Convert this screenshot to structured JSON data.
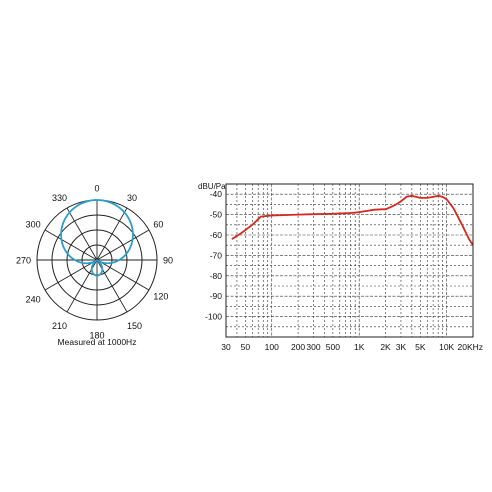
{
  "chart_data": [
    {
      "type": "polar",
      "caption": "Measured at 1000Hz",
      "angle_labels": [
        {
          "angle": 0,
          "label": "0"
        },
        {
          "angle": 30,
          "label": "30"
        },
        {
          "angle": 60,
          "label": "60"
        },
        {
          "angle": 90,
          "label": "90"
        },
        {
          "angle": 120,
          "label": "120"
        },
        {
          "angle": 150,
          "label": "150"
        },
        {
          "angle": 180,
          "label": "180"
        },
        {
          "angle": 210,
          "label": "210"
        },
        {
          "angle": 240,
          "label": "240"
        },
        {
          "angle": 270,
          "label": "270"
        },
        {
          "angle": 300,
          "label": "300"
        },
        {
          "angle": 330,
          "label": "330"
        }
      ],
      "rings": 4,
      "pattern": "supercardioid",
      "pattern_model": {
        "a": 0.37,
        "b": 0.63
      },
      "series_color": "#2a9fcc",
      "grid_color": "#222222"
    },
    {
      "type": "line",
      "ylabel": "dBU/Pa",
      "x_scale": "log",
      "xlim": [
        30,
        20000
      ],
      "ylim": [
        -110,
        -35
      ],
      "grid": true,
      "x_tick_labels": [
        {
          "value": 30,
          "label": "30"
        },
        {
          "value": 50,
          "label": "50"
        },
        {
          "value": 100,
          "label": "100"
        },
        {
          "value": 200,
          "label": "200"
        },
        {
          "value": 300,
          "label": "300"
        },
        {
          "value": 500,
          "label": "500"
        },
        {
          "value": 1000,
          "label": "1K"
        },
        {
          "value": 2000,
          "label": "2K"
        },
        {
          "value": 3000,
          "label": "3K"
        },
        {
          "value": 5000,
          "label": "5K"
        },
        {
          "value": 10000,
          "label": "10K"
        },
        {
          "value": 20000,
          "label": "20KHz"
        }
      ],
      "y_tick_labels": [
        {
          "value": -40,
          "label": "-40"
        },
        {
          "value": -50,
          "label": "-50"
        },
        {
          "value": -60,
          "label": "-60"
        },
        {
          "value": -70,
          "label": "-70"
        },
        {
          "value": -80,
          "label": "-80"
        },
        {
          "value": -90,
          "label": "-90"
        },
        {
          "value": -100,
          "label": "-100"
        }
      ],
      "series_color": "#d42a20",
      "series": [
        {
          "x": [
            35,
            45,
            60,
            75,
            100,
            150,
            200,
            300,
            500,
            800,
            1000,
            1500,
            1800,
            2000,
            2500,
            3000,
            3500,
            4000,
            5000,
            6000,
            7000,
            8000,
            9000,
            10000,
            12000,
            15000,
            18000,
            20000
          ],
          "y": [
            -62,
            -59,
            -55,
            -51,
            -50.4,
            -50.2,
            -50,
            -49.8,
            -49.6,
            -49.2,
            -48.8,
            -47.6,
            -47.4,
            -47.4,
            -45.6,
            -43.5,
            -41.2,
            -40.8,
            -41.8,
            -41.8,
            -41.3,
            -40.8,
            -41.3,
            -42.5,
            -47,
            -55,
            -62,
            -65
          ]
        }
      ]
    }
  ]
}
